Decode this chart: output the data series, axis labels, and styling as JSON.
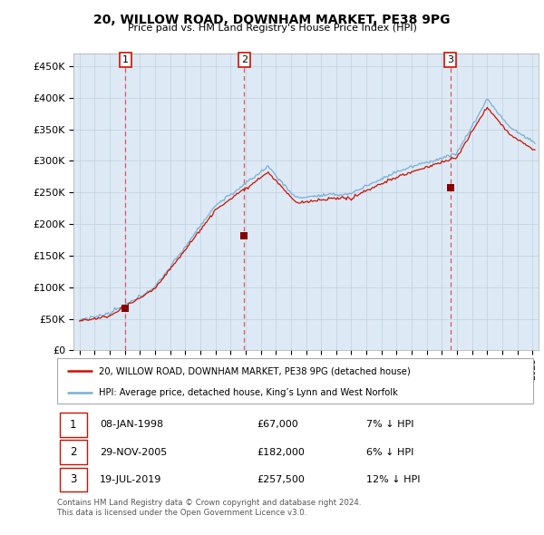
{
  "title": "20, WILLOW ROAD, DOWNHAM MARKET, PE38 9PG",
  "subtitle": "Price paid vs. HM Land Registry's House Price Index (HPI)",
  "legend_line1": "20, WILLOW ROAD, DOWNHAM MARKET, PE38 9PG (detached house)",
  "legend_line2": "HPI: Average price, detached house, King’s Lynn and West Norfolk",
  "footer1": "Contains HM Land Registry data © Crown copyright and database right 2024.",
  "footer2": "This data is licensed under the Open Government Licence v3.0.",
  "sale_points": [
    {
      "label": "1",
      "date": "08-JAN-1998",
      "price": 67000,
      "x": 1998.04,
      "hpi_pct": "7% ↓ HPI"
    },
    {
      "label": "2",
      "date": "29-NOV-2005",
      "price": 182000,
      "x": 2005.91,
      "hpi_pct": "6% ↓ HPI"
    },
    {
      "label": "3",
      "date": "19-JUL-2019",
      "price": 257500,
      "x": 2019.55,
      "hpi_pct": "12% ↓ HPI"
    }
  ],
  "hpi_color": "#7aafd4",
  "price_color": "#cc1100",
  "sale_marker_color": "#880000",
  "sale_label_color": "#cc1100",
  "background_color": "#ffffff",
  "chart_bg_color": "#ddeaf5",
  "grid_color": "#c0cfe0",
  "vline_color": "#dd4444",
  "yticks": [
    0,
    50000,
    100000,
    150000,
    200000,
    250000,
    300000,
    350000,
    400000,
    450000
  ],
  "xlim_left": 1994.6,
  "xlim_right": 2025.4,
  "ylim_top": 470000,
  "xtick_years": [
    1995,
    1996,
    1997,
    1998,
    1999,
    2000,
    2001,
    2002,
    2003,
    2004,
    2005,
    2006,
    2007,
    2008,
    2009,
    2010,
    2011,
    2012,
    2013,
    2014,
    2015,
    2016,
    2017,
    2018,
    2019,
    2020,
    2021,
    2022,
    2023,
    2024,
    2025
  ]
}
